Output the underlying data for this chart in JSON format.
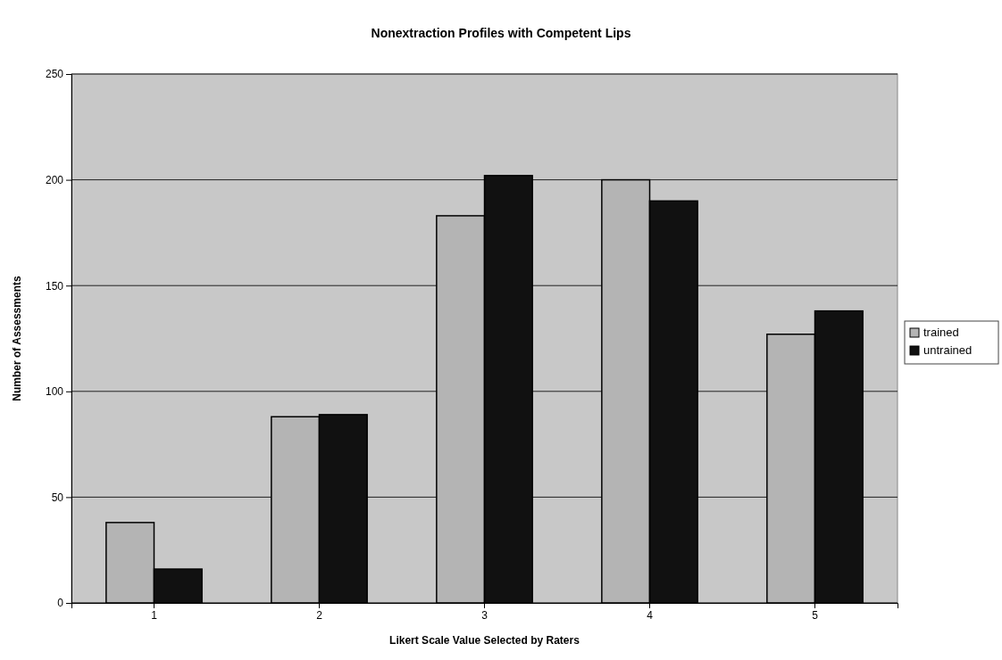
{
  "chart_data": {
    "type": "bar",
    "title": "Nonextraction Profiles with Competent Lips",
    "xlabel": "Likert Scale Value Selected by Raters",
    "ylabel": "Number of Assessments",
    "categories": [
      "1",
      "2",
      "3",
      "4",
      "5"
    ],
    "series": [
      {
        "name": "trained",
        "color": "#b4b4b4",
        "values": [
          38,
          88,
          183,
          200,
          127
        ]
      },
      {
        "name": "untrained",
        "color": "#111111",
        "values": [
          16,
          89,
          202,
          190,
          138
        ]
      }
    ],
    "ylim": [
      0,
      250
    ],
    "yticks": [
      0,
      50,
      100,
      150,
      200,
      250
    ],
    "grid": "y",
    "legend": "right"
  }
}
